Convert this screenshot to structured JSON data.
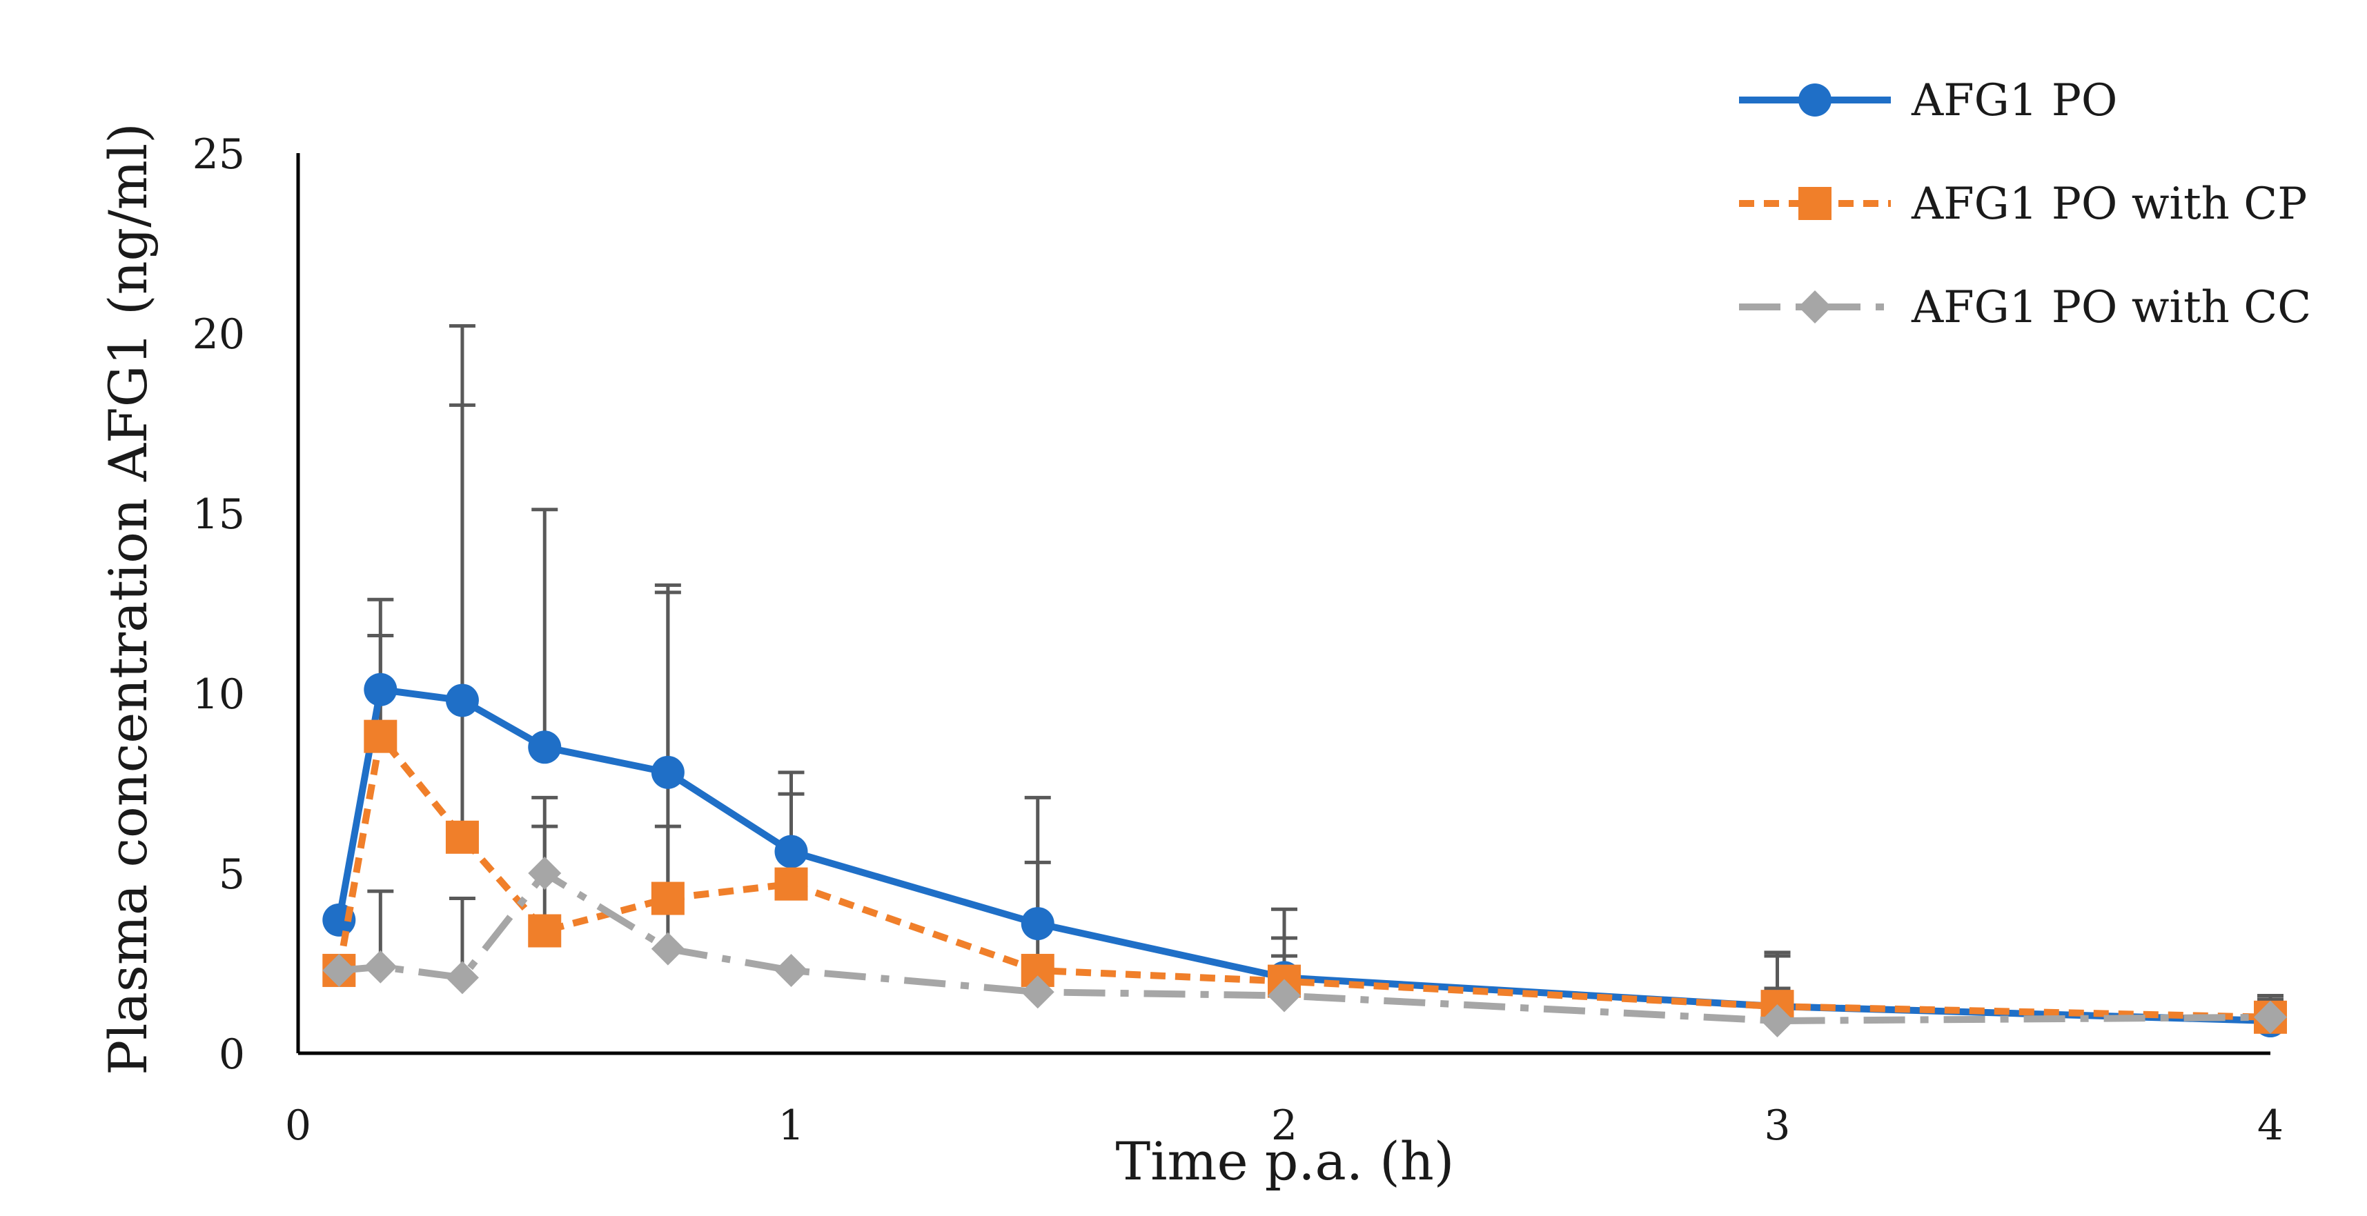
{
  "chart_data": {
    "type": "line",
    "title": "",
    "xlabel": "Time p.a. (h)",
    "ylabel": "Plasma concentration AFG1 (ng/ml)",
    "xlim": [
      0,
      4
    ],
    "ylim": [
      0,
      25
    ],
    "xticks": [
      0,
      1,
      2,
      3,
      4
    ],
    "yticks": [
      0,
      5,
      10,
      15,
      20,
      25
    ],
    "xtick_labels": [
      "0",
      "1",
      "2",
      "3",
      "4"
    ],
    "ytick_labels": [
      "0",
      "5",
      "10",
      "15",
      "20",
      "25"
    ],
    "grid": false,
    "legend_position": "top-right",
    "error_bars": "upper only",
    "series": [
      {
        "name": "AFG1 PO",
        "color": "#1f6fc7",
        "line_style": "solid",
        "marker": "circle",
        "x": [
          0.083,
          0.167,
          0.333,
          0.5,
          0.75,
          1,
          1.5,
          2,
          3,
          4
        ],
        "values": [
          3.7,
          10.1,
          9.8,
          8.5,
          7.8,
          5.6,
          3.6,
          2.1,
          1.3,
          0.9
        ],
        "error_upper": [
          3.7,
          12.6,
          20.2,
          15.1,
          13.0,
          7.8,
          7.1,
          4.0,
          2.8,
          1.6
        ]
      },
      {
        "name": "AFG1 PO with CP",
        "color": "#f07f2a",
        "line_style": "dashed",
        "marker": "square",
        "x": [
          0.083,
          0.167,
          0.333,
          0.5,
          0.75,
          1,
          1.5,
          2,
          3,
          4
        ],
        "values": [
          2.3,
          8.8,
          6.0,
          3.4,
          4.3,
          4.7,
          2.3,
          2.0,
          1.3,
          1.0
        ],
        "error_upper": [
          2.3,
          11.6,
          18.0,
          7.1,
          12.8,
          7.2,
          5.3,
          3.2,
          2.7,
          1.5
        ]
      },
      {
        "name": "AFG1 PO with CC",
        "color": "#a6a6a6",
        "line_style": "dash-dot",
        "marker": "diamond",
        "x": [
          0.083,
          0.167,
          0.333,
          0.5,
          0.75,
          1,
          1.5,
          2,
          3,
          4
        ],
        "values": [
          2.3,
          2.4,
          2.1,
          5.0,
          2.9,
          2.3,
          1.7,
          1.6,
          0.9,
          1.0
        ],
        "error_upper": [
          2.3,
          4.5,
          4.3,
          6.3,
          6.3,
          2.3,
          1.7,
          2.7,
          1.8,
          1.4
        ]
      }
    ]
  }
}
